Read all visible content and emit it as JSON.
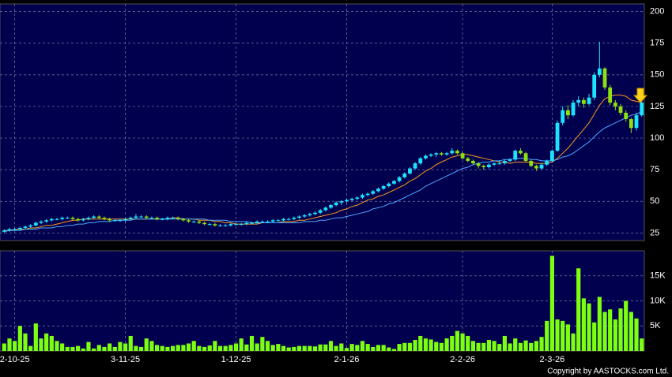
{
  "chart_data": [
    {
      "type": "candlestick",
      "up_color": "#1ee3ff",
      "down_color": "#8fe010",
      "grid": true,
      "ylim": [
        19,
        206
      ],
      "yticks": [
        25,
        50,
        75,
        100,
        125,
        150,
        175,
        200
      ],
      "candles": [
        [
          26,
          28,
          25,
          27
        ],
        [
          27,
          29,
          26,
          28
        ],
        [
          28,
          29,
          27,
          28
        ],
        [
          28,
          30,
          27,
          29
        ],
        [
          29,
          31,
          28,
          30
        ],
        [
          30,
          32,
          29,
          31
        ],
        [
          31,
          34,
          30,
          33
        ],
        [
          33,
          35,
          32,
          34
        ],
        [
          34,
          36,
          33,
          35
        ],
        [
          35,
          37,
          34,
          36
        ],
        [
          36,
          37,
          35,
          36
        ],
        [
          36,
          38,
          35,
          37
        ],
        [
          37,
          38,
          36,
          37
        ],
        [
          37,
          38,
          35,
          36
        ],
        [
          36,
          37,
          34,
          35
        ],
        [
          35,
          37,
          34,
          36
        ],
        [
          36,
          38,
          35,
          37
        ],
        [
          37,
          39,
          36,
          38
        ],
        [
          38,
          39,
          36,
          37
        ],
        [
          37,
          38,
          35,
          36
        ],
        [
          36,
          37,
          34,
          35
        ],
        [
          35,
          36,
          34,
          35
        ],
        [
          35,
          36,
          34,
          35
        ],
        [
          35,
          37,
          34,
          36
        ],
        [
          36,
          38,
          35,
          37
        ],
        [
          37,
          40,
          36,
          38
        ],
        [
          38,
          39,
          37,
          38
        ],
        [
          38,
          39,
          36,
          37
        ],
        [
          37,
          38,
          36,
          37
        ],
        [
          37,
          38,
          35,
          36
        ],
        [
          36,
          37,
          35,
          36
        ],
        [
          36,
          38,
          35,
          37
        ],
        [
          37,
          38,
          36,
          37
        ],
        [
          37,
          38,
          35,
          36
        ],
        [
          36,
          37,
          34,
          35
        ],
        [
          35,
          36,
          33,
          34
        ],
        [
          34,
          35,
          33,
          34
        ],
        [
          34,
          35,
          32,
          33
        ],
        [
          33,
          34,
          31,
          32
        ],
        [
          32,
          33,
          31,
          32
        ],
        [
          32,
          33,
          30,
          31
        ],
        [
          31,
          32,
          30,
          31
        ],
        [
          31,
          32,
          30,
          31
        ],
        [
          31,
          33,
          30,
          32
        ],
        [
          32,
          33,
          31,
          32
        ],
        [
          32,
          33,
          31,
          32
        ],
        [
          32,
          34,
          31,
          33
        ],
        [
          33,
          34,
          32,
          33
        ],
        [
          33,
          35,
          32,
          34
        ],
        [
          34,
          35,
          33,
          34
        ],
        [
          34,
          35,
          33,
          34
        ],
        [
          34,
          36,
          33,
          35
        ],
        [
          35,
          36,
          34,
          35
        ],
        [
          35,
          37,
          34,
          36
        ],
        [
          36,
          37,
          35,
          36
        ],
        [
          36,
          38,
          35,
          37
        ],
        [
          37,
          39,
          36,
          38
        ],
        [
          38,
          40,
          37,
          39
        ],
        [
          39,
          41,
          38,
          40
        ],
        [
          40,
          42,
          39,
          41
        ],
        [
          41,
          44,
          40,
          43
        ],
        [
          43,
          46,
          42,
          45
        ],
        [
          45,
          48,
          44,
          47
        ],
        [
          47,
          50,
          46,
          49
        ],
        [
          49,
          51,
          47,
          50
        ],
        [
          50,
          52,
          49,
          51
        ],
        [
          51,
          53,
          50,
          52
        ],
        [
          52,
          54,
          51,
          53
        ],
        [
          53,
          56,
          52,
          55
        ],
        [
          55,
          57,
          54,
          56
        ],
        [
          56,
          59,
          55,
          58
        ],
        [
          58,
          61,
          57,
          60
        ],
        [
          60,
          63,
          59,
          62
        ],
        [
          62,
          65,
          61,
          64
        ],
        [
          64,
          67,
          63,
          66
        ],
        [
          66,
          70,
          65,
          69
        ],
        [
          69,
          73,
          68,
          72
        ],
        [
          72,
          77,
          71,
          76
        ],
        [
          76,
          81,
          75,
          80
        ],
        [
          80,
          85,
          79,
          84
        ],
        [
          84,
          87,
          83,
          86
        ],
        [
          86,
          88,
          85,
          87
        ],
        [
          87,
          89,
          85,
          88
        ],
        [
          88,
          89,
          86,
          87
        ],
        [
          87,
          89,
          86,
          88
        ],
        [
          88,
          92,
          87,
          90
        ],
        [
          90,
          91,
          87,
          88
        ],
        [
          88,
          89,
          83,
          84
        ],
        [
          84,
          85,
          81,
          82
        ],
        [
          82,
          83,
          79,
          80
        ],
        [
          80,
          81,
          76,
          78
        ],
        [
          78,
          79,
          75,
          77
        ],
        [
          77,
          80,
          76,
          79
        ],
        [
          79,
          81,
          78,
          80
        ],
        [
          80,
          82,
          79,
          80
        ],
        [
          80,
          83,
          79,
          82
        ],
        [
          82,
          84,
          81,
          83
        ],
        [
          83,
          91,
          82,
          90
        ],
        [
          90,
          92,
          87,
          88
        ],
        [
          88,
          89,
          81,
          82
        ],
        [
          82,
          83,
          77,
          78
        ],
        [
          78,
          79,
          74,
          76
        ],
        [
          76,
          80,
          75,
          79
        ],
        [
          79,
          83,
          78,
          82
        ],
        [
          82,
          91,
          81,
          90
        ],
        [
          90,
          114,
          89,
          112
        ],
        [
          112,
          125,
          110,
          122
        ],
        [
          122,
          126,
          115,
          118
        ],
        [
          118,
          130,
          117,
          128
        ],
        [
          128,
          133,
          125,
          130
        ],
        [
          130,
          132,
          124,
          127
        ],
        [
          127,
          135,
          126,
          132
        ],
        [
          132,
          152,
          130,
          150
        ],
        [
          150,
          176,
          148,
          155
        ],
        [
          155,
          156,
          138,
          140
        ],
        [
          140,
          142,
          126,
          128
        ],
        [
          128,
          130,
          122,
          125
        ],
        [
          125,
          127,
          118,
          120
        ],
        [
          120,
          122,
          113,
          115
        ],
        [
          115,
          116,
          104,
          108
        ],
        [
          108,
          120,
          106,
          118
        ],
        [
          118,
          130,
          117,
          128
        ]
      ],
      "series": [
        {
          "color": "#ff9a1f",
          "values": [
            27,
            27,
            28,
            28,
            28,
            29,
            29,
            30,
            31,
            31,
            32,
            33,
            34,
            35,
            35,
            36,
            36,
            36,
            36,
            36,
            36,
            36,
            36,
            36,
            36,
            36,
            36,
            36,
            36,
            36,
            36,
            36,
            37,
            37,
            36,
            36,
            36,
            35,
            35,
            35,
            34,
            34,
            33,
            33,
            32,
            32,
            32,
            32,
            32,
            33,
            33,
            33,
            33,
            34,
            34,
            34,
            35,
            35,
            36,
            37,
            38,
            39,
            40,
            41,
            43,
            44,
            46,
            47,
            49,
            51,
            52,
            54,
            55,
            57,
            59,
            61,
            63,
            66,
            68,
            71,
            74,
            76,
            79,
            81,
            83,
            85,
            86,
            87,
            87,
            86,
            85,
            84,
            83,
            82,
            81,
            81,
            80,
            81,
            81,
            81,
            81,
            80,
            80,
            80,
            81,
            84,
            88,
            92,
            97,
            102,
            107,
            112,
            119,
            126,
            131,
            133,
            134,
            134,
            133,
            130,
            129,
            128
          ]
        },
        {
          "color": "#4fa8ff",
          "values": [
            26,
            27,
            27,
            27,
            28,
            28,
            28,
            29,
            29,
            29,
            30,
            30,
            31,
            31,
            32,
            32,
            33,
            33,
            34,
            34,
            34,
            35,
            35,
            35,
            35,
            36,
            36,
            36,
            36,
            36,
            36,
            36,
            36,
            36,
            36,
            36,
            36,
            36,
            36,
            35,
            35,
            35,
            35,
            34,
            34,
            34,
            34,
            33,
            33,
            33,
            33,
            33,
            33,
            33,
            33,
            33,
            33,
            34,
            34,
            34,
            35,
            35,
            36,
            37,
            37,
            38,
            39,
            40,
            41,
            42,
            44,
            45,
            46,
            48,
            49,
            51,
            53,
            55,
            57,
            59,
            62,
            64,
            66,
            68,
            70,
            72,
            74,
            76,
            77,
            79,
            80,
            81,
            81,
            82,
            82,
            83,
            83,
            84,
            84,
            84,
            83,
            83,
            82,
            82,
            82,
            83,
            85,
            86,
            88,
            91,
            94,
            97,
            101,
            105,
            108,
            110,
            112,
            114,
            116,
            118,
            119,
            121
          ]
        }
      ]
    },
    {
      "type": "bar",
      "color": "#7dff10",
      "grid": true,
      "ylim": [
        0,
        20000
      ],
      "yticks": [
        {
          "value": 5000,
          "label": "5K"
        },
        {
          "value": 10000,
          "label": "10K"
        },
        {
          "value": 15000,
          "label": "15K"
        }
      ],
      "categories": [
        null,
        null,
        "2-10-25",
        null,
        null,
        null,
        null,
        null,
        null,
        null,
        null,
        null,
        null,
        null,
        null,
        null,
        null,
        null,
        null,
        null,
        null,
        null,
        null,
        "3-11-25",
        null,
        null,
        null,
        null,
        null,
        null,
        null,
        null,
        null,
        null,
        null,
        null,
        null,
        null,
        null,
        null,
        null,
        null,
        null,
        null,
        "1-12-25",
        null,
        null,
        null,
        null,
        null,
        null,
        null,
        null,
        null,
        null,
        null,
        null,
        null,
        null,
        null,
        null,
        null,
        null,
        null,
        null,
        "2-1-26",
        null,
        null,
        null,
        null,
        null,
        null,
        null,
        null,
        null,
        null,
        null,
        null,
        null,
        null,
        null,
        null,
        null,
        null,
        null,
        null,
        null,
        "2-2-26",
        null,
        null,
        null,
        null,
        null,
        null,
        null,
        null,
        null,
        null,
        null,
        null,
        null,
        null,
        null,
        null,
        "2-3-26",
        null,
        null,
        null,
        null,
        null,
        null,
        null,
        null,
        null,
        null,
        null,
        null,
        null,
        null,
        null,
        null,
        null
      ],
      "values": [
        1500,
        2500,
        2000,
        5000,
        3500,
        1000,
        5500,
        2500,
        3500,
        3000,
        2000,
        1500,
        800,
        800,
        1000,
        500,
        1800,
        500,
        1200,
        800,
        1500,
        800,
        1800,
        1500,
        3000,
        1000,
        800,
        2500,
        2000,
        1200,
        1000,
        800,
        1000,
        1200,
        1200,
        1500,
        2000,
        1000,
        800,
        1100,
        2000,
        1000,
        1000,
        1200,
        1500,
        2500,
        1300,
        3000,
        1500,
        2800,
        2000,
        1200,
        1400,
        1000,
        700,
        800,
        1000,
        1000,
        1000,
        900,
        1300,
        1300,
        2000,
        1000,
        1500,
        600,
        1400,
        1200,
        2000,
        1400,
        800,
        1200,
        1200,
        700,
        400,
        1400,
        1600,
        1600,
        2200,
        3000,
        2500,
        2300,
        1800,
        1600,
        2500,
        3000,
        4000,
        3500,
        3000,
        2000,
        1600,
        1600,
        2200,
        2000,
        1400,
        3000,
        1500,
        2500,
        1600,
        2100,
        1600,
        2000,
        2800,
        6000,
        19000,
        6300,
        6000,
        5300,
        3500,
        16500,
        10500,
        9500,
        5700,
        10800,
        7800,
        8300,
        6300,
        8500,
        10000,
        7800,
        6500,
        2500
      ]
    }
  ],
  "footer": "Copyright by AASTOCKS.com Ltd."
}
